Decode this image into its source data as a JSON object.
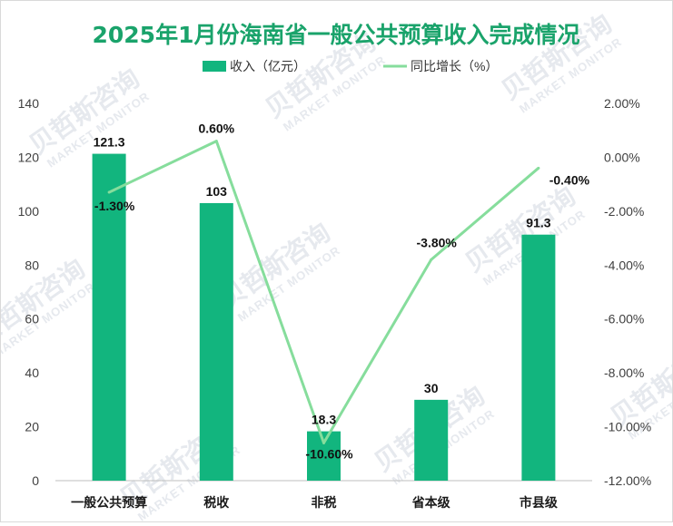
{
  "chart_data": {
    "type": "bar+line",
    "title": "2025年1月份海南省一般公共预算收入完成情况",
    "categories": [
      "一般公共预算",
      "税收",
      "非税",
      "省本级",
      "市县级"
    ],
    "series": [
      {
        "name": "收入（亿元）",
        "type": "bar",
        "axis": "left",
        "values": [
          121.3,
          103,
          18.3,
          30,
          91.3
        ],
        "labels": [
          "121.3",
          "103",
          "18.3",
          "30",
          "91.3"
        ],
        "color": "#12b57e"
      },
      {
        "name": "同比增长（%）",
        "type": "line",
        "axis": "right",
        "values": [
          -1.3,
          0.6,
          -10.6,
          -3.8,
          -0.4
        ],
        "labels": [
          "-1.30%",
          "0.60%",
          "-10.60%",
          "-3.80%",
          "-0.40%"
        ],
        "color": "#86dd9c"
      }
    ],
    "y_left": {
      "min": 0,
      "max": 140,
      "ticks": [
        "0",
        "20",
        "40",
        "60",
        "80",
        "100",
        "120",
        "140"
      ]
    },
    "y_right": {
      "min": -12,
      "max": 2,
      "ticks": [
        "-12.00%",
        "-10.00%",
        "-8.00%",
        "-6.00%",
        "-4.00%",
        "-2.00%",
        "0.00%",
        "2.00%"
      ]
    },
    "legend_position": "top-center",
    "grid": false
  },
  "watermark": {
    "cn": "贝哲斯咨询",
    "en": "MARKET MONITOR"
  }
}
